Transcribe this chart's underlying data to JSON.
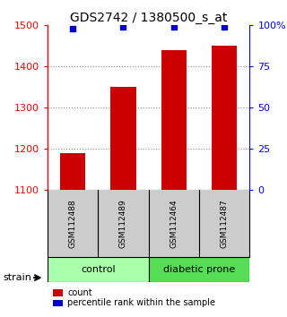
{
  "title": "GDS2742 / 1380500_s_at",
  "samples": [
    "GSM112488",
    "GSM112489",
    "GSM112464",
    "GSM112487"
  ],
  "counts": [
    1190,
    1350,
    1440,
    1450
  ],
  "percentiles": [
    98,
    99,
    99,
    99
  ],
  "ylim_left": [
    1100,
    1500
  ],
  "ylim_right": [
    0,
    100
  ],
  "yticks_left": [
    1100,
    1200,
    1300,
    1400,
    1500
  ],
  "yticks_right": [
    0,
    25,
    50,
    75,
    100
  ],
  "ytick_labels_right": [
    "0",
    "25",
    "50",
    "75",
    "100%"
  ],
  "bar_color": "#cc0000",
  "dot_color": "#0000cc",
  "groups": [
    {
      "label": "control",
      "color": "#aaffaa"
    },
    {
      "label": "diabetic prone",
      "color": "#55dd55"
    }
  ],
  "legend_items": [
    {
      "label": "count",
      "color": "#cc0000"
    },
    {
      "label": "percentile rank within the sample",
      "color": "#0000cc"
    }
  ],
  "strain_label": "strain",
  "background_color": "#ffffff",
  "grid_color": "#888888",
  "sample_box_color": "#cccccc",
  "sample_text_color": "#000000",
  "bar_width": 0.5,
  "dot_size": 5
}
